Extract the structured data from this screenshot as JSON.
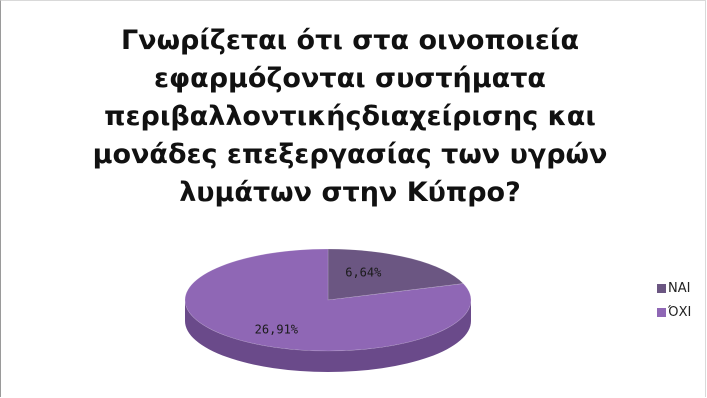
{
  "title_lines": [
    "Γνωρίζεται ότι στα οινοποιεία",
    "εφαρμόζονται συστήματα",
    "περιβαλλοντικήςδιαχείρισης και",
    "μονάδες επεξεργασίας των υγρών",
    "λυμάτων στην Κύπρο?"
  ],
  "colors": {
    "nai": "#6b5682",
    "oxi": "#8f67b5",
    "nai_side": "#4f3d63",
    "oxi_side": "#6a4a8a"
  },
  "chart_data": {
    "type": "pie",
    "title": "Γνωρίζεται ότι στα οινοποιεία εφαρμόζονται συστήματα περιβαλλοντικήςδιαχείρισης και μονάδες επεξεργασίας των υγρών λυμάτων στην Κύπρο?",
    "categories": [
      "ΝΑΙ",
      "ΌΧΙ"
    ],
    "values": [
      6.64,
      26.91
    ],
    "data_labels": [
      "6,64%",
      "26,91%"
    ],
    "legend_position": "right"
  }
}
